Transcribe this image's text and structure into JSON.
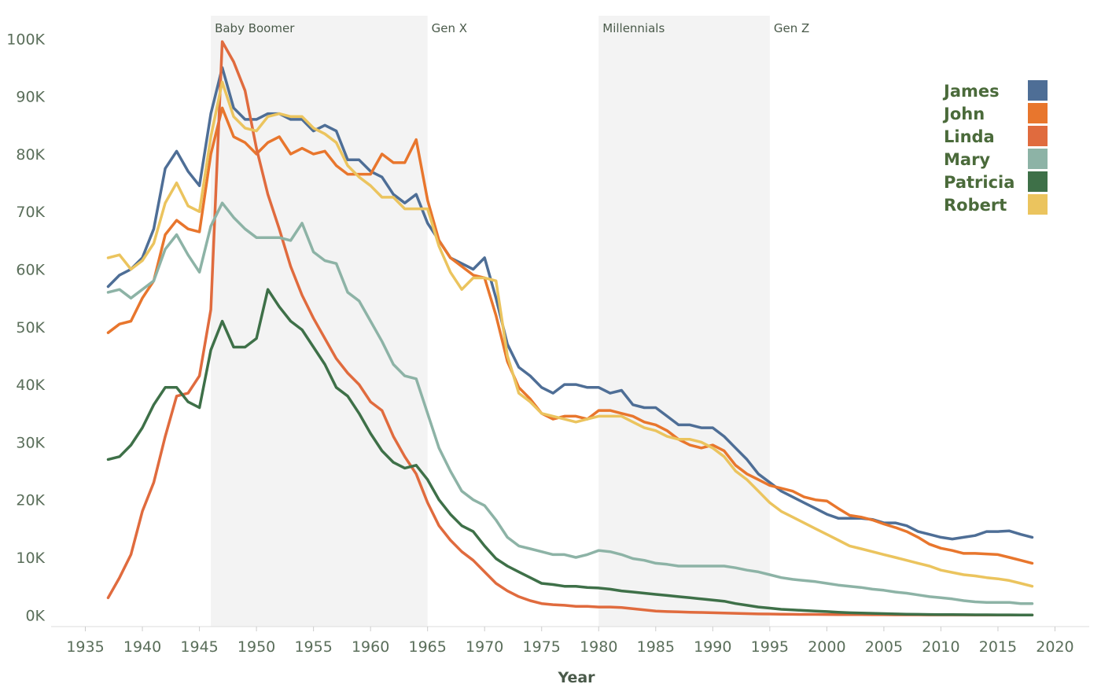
{
  "chart_data": {
    "type": "line",
    "title": "",
    "xlabel": "Year",
    "ylabel": "",
    "xlim": [
      1932,
      2023
    ],
    "ylim": [
      -2000,
      104000
    ],
    "x_ticks": [
      1935,
      1940,
      1945,
      1950,
      1955,
      1960,
      1965,
      1970,
      1975,
      1980,
      1985,
      1990,
      1995,
      2000,
      2005,
      2010,
      2015,
      2020
    ],
    "y_ticks": [
      {
        "value": 0,
        "label": "0K"
      },
      {
        "value": 10000,
        "label": "10K"
      },
      {
        "value": 20000,
        "label": "20K"
      },
      {
        "value": 30000,
        "label": "30K"
      },
      {
        "value": 40000,
        "label": "40K"
      },
      {
        "value": 50000,
        "label": "50K"
      },
      {
        "value": 60000,
        "label": "60K"
      },
      {
        "value": 70000,
        "label": "70K"
      },
      {
        "value": 80000,
        "label": "80K"
      },
      {
        "value": 90000,
        "label": "90K"
      },
      {
        "value": 100000,
        "label": "100K"
      }
    ],
    "grid": false,
    "legend_position": "top-right",
    "bands": [
      {
        "label": "Baby Boomer",
        "start": 1946,
        "end": 1965,
        "shaded": true
      },
      {
        "label": "Gen X",
        "start": 1965,
        "end": 1980,
        "shaded": false
      },
      {
        "label": "Millennials",
        "start": 1980,
        "end": 1995,
        "shaded": true
      },
      {
        "label": "Gen Z",
        "start": 1995,
        "end": 2018,
        "shaded": false
      }
    ],
    "x_start": 1937,
    "series": [
      {
        "name": "James",
        "color": "#4e6e96",
        "values": [
          57000,
          59000,
          60000,
          62000,
          67000,
          77500,
          80500,
          77000,
          74500,
          87000,
          95000,
          88000,
          86000,
          86000,
          87000,
          87000,
          86000,
          86000,
          84000,
          85000,
          84000,
          79000,
          79000,
          77000,
          76000,
          73000,
          71500,
          73000,
          68000,
          65000,
          62000,
          61000,
          60000,
          62000,
          55000,
          47000,
          43000,
          41500,
          39500,
          38500,
          40000,
          40000,
          39500,
          39500,
          38500,
          39000,
          36500,
          36000,
          36000,
          34500,
          33000,
          33000,
          32500,
          32500,
          31000,
          29000,
          27000,
          24500,
          23000,
          21500,
          20500,
          19500,
          18500,
          17500,
          16800,
          16800,
          16800,
          16600,
          16000,
          16000,
          15500,
          14500,
          14000,
          13500,
          13200,
          13500,
          13800,
          14500,
          14500,
          14600,
          14000,
          13500
        ]
      },
      {
        "name": "John",
        "color": "#e8762d",
        "values": [
          49000,
          50500,
          51000,
          55000,
          58000,
          66000,
          68500,
          67000,
          66500,
          80000,
          88000,
          83000,
          82000,
          80000,
          82000,
          83000,
          80000,
          81000,
          80000,
          80500,
          78000,
          76500,
          76500,
          76500,
          80000,
          78500,
          78500,
          82500,
          72000,
          65000,
          62000,
          60500,
          59000,
          58500,
          52000,
          44000,
          39500,
          37500,
          35000,
          34000,
          34500,
          34500,
          34000,
          35500,
          35500,
          35000,
          34500,
          33500,
          33000,
          32000,
          30500,
          29500,
          29000,
          29500,
          28500,
          26000,
          24500,
          23500,
          22500,
          22000,
          21500,
          20500,
          20000,
          19800,
          18500,
          17300,
          17000,
          16500,
          15800,
          15200,
          14500,
          13500,
          12300,
          11600,
          11200,
          10700,
          10700,
          10600,
          10500,
          10000,
          9500,
          9000
        ]
      },
      {
        "name": "Linda",
        "color": "#e06b3e",
        "values": [
          3000,
          6500,
          10500,
          18000,
          23000,
          31000,
          38000,
          38500,
          41500,
          53000,
          99500,
          96000,
          91000,
          81000,
          73000,
          67000,
          60500,
          55500,
          51500,
          48000,
          44500,
          42000,
          40000,
          37000,
          35500,
          31000,
          27500,
          24500,
          19500,
          15500,
          13000,
          11000,
          9500,
          7500,
          5500,
          4200,
          3200,
          2500,
          2000,
          1800,
          1700,
          1500,
          1500,
          1400,
          1400,
          1300,
          1100,
          900,
          700,
          600,
          550,
          500,
          450,
          400,
          350,
          300,
          250,
          200,
          180,
          150,
          130,
          120,
          110,
          100,
          90,
          80,
          70,
          60,
          55,
          50,
          45,
          40,
          35,
          30,
          28,
          26,
          25,
          24,
          23,
          22,
          21,
          20
        ]
      },
      {
        "name": "Mary",
        "color": "#8db3a6",
        "values": [
          56000,
          56500,
          55000,
          56500,
          58000,
          63500,
          66000,
          62500,
          59500,
          67500,
          71500,
          69000,
          67000,
          65500,
          65500,
          65500,
          65000,
          68000,
          63000,
          61500,
          61000,
          56000,
          54500,
          51000,
          47500,
          43500,
          41500,
          41000,
          35000,
          29000,
          25000,
          21500,
          20000,
          19000,
          16500,
          13500,
          12000,
          11500,
          11000,
          10500,
          10500,
          10000,
          10500,
          11200,
          11000,
          10500,
          9800,
          9500,
          9000,
          8800,
          8500,
          8500,
          8500,
          8500,
          8500,
          8200,
          7800,
          7500,
          7000,
          6500,
          6200,
          6000,
          5800,
          5500,
          5200,
          5000,
          4800,
          4500,
          4300,
          4000,
          3800,
          3500,
          3200,
          3000,
          2800,
          2500,
          2300,
          2200,
          2200,
          2200,
          2000,
          2000
        ]
      },
      {
        "name": "Patricia",
        "color": "#3e7048",
        "values": [
          27000,
          27500,
          29500,
          32500,
          36500,
          39500,
          39500,
          37000,
          36000,
          46000,
          51000,
          46500,
          46500,
          48000,
          56500,
          53500,
          51000,
          49500,
          46500,
          43500,
          39500,
          38000,
          35000,
          31500,
          28500,
          26500,
          25500,
          26000,
          23500,
          20000,
          17500,
          15500,
          14500,
          12000,
          9800,
          8500,
          7500,
          6500,
          5500,
          5300,
          5000,
          5000,
          4800,
          4700,
          4500,
          4200,
          4000,
          3800,
          3600,
          3400,
          3200,
          3000,
          2800,
          2600,
          2400,
          2000,
          1700,
          1400,
          1200,
          1000,
          900,
          800,
          700,
          600,
          500,
          400,
          350,
          300,
          250,
          200,
          160,
          130,
          100,
          80,
          70,
          60,
          50,
          40,
          35,
          30,
          25,
          20
        ]
      },
      {
        "name": "Robert",
        "color": "#ebc45e",
        "values": [
          62000,
          62500,
          60000,
          61500,
          64500,
          71500,
          75000,
          71000,
          70000,
          83000,
          92500,
          86500,
          84500,
          84000,
          86500,
          87000,
          86500,
          86500,
          84500,
          83500,
          82000,
          78000,
          76000,
          74500,
          72500,
          72500,
          70500,
          70500,
          70500,
          64000,
          59500,
          56500,
          58500,
          58500,
          58000,
          45000,
          38500,
          37000,
          35000,
          34500,
          34000,
          33500,
          34000,
          34500,
          34500,
          34500,
          33500,
          32500,
          32000,
          31000,
          30500,
          30500,
          30000,
          29000,
          27500,
          25000,
          23500,
          21500,
          19500,
          18000,
          17000,
          16000,
          15000,
          14000,
          13000,
          12000,
          11500,
          11000,
          10500,
          10000,
          9500,
          9000,
          8500,
          7800,
          7400,
          7000,
          6800,
          6500,
          6300,
          6000,
          5500,
          5000
        ]
      }
    ]
  }
}
